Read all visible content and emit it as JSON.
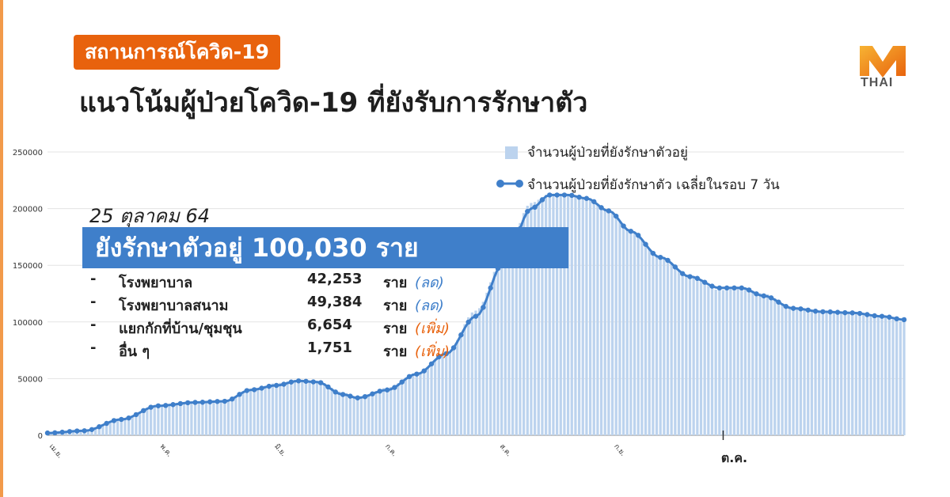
{
  "header": {
    "tag": "สถานการณ์โควิด-19",
    "headline": "แนวโน้มผู้ป่วยโควิด-19 ที่ยังรับการรักษาตัว"
  },
  "logo": {
    "text": "THAI"
  },
  "colors": {
    "accent": "#e8620d",
    "banner": "#3f7fca",
    "bar": "#bcd3ee",
    "line": "#3f7fca",
    "stripe": "#f29a4a",
    "decrease": "#3f7fca",
    "increase": "#e8620d"
  },
  "summary": {
    "date": "25 ตุลาคม 64",
    "headline": "ยังรักษาตัวอยู่ 100,030 ราย",
    "rows": [
      {
        "dash": "-",
        "name": "โรงพยาบาล",
        "value": "42,253",
        "unit": "ราย",
        "change": "(ลด)",
        "type": "decrease"
      },
      {
        "dash": "-",
        "name": "โรงพยาบาลสนาม",
        "value": "49,384",
        "unit": "ราย",
        "change": "(ลด)",
        "type": "decrease"
      },
      {
        "dash": "-",
        "name": "แยกกักที่บ้าน/ชุมชุน",
        "value": "6,654",
        "unit": "ราย",
        "change": "(เพิ่ม)",
        "type": "increase"
      },
      {
        "dash": "-",
        "name": "อื่น ๆ",
        "value": "1,751",
        "unit": "ราย",
        "change": "(เพิ่ม)",
        "type": "increase"
      }
    ]
  },
  "chart_data": {
    "type": "bar",
    "legend": [
      "จำนวนผู้ป่วยที่ยังรักษาตัวอยู่",
      "จำนวนผู้ป่วยที่ยังรักษาตัว เฉลี่ยในรอบ 7 วัน"
    ],
    "legend_position": "top-right",
    "ylim": [
      0,
      250000
    ],
    "yticks": [
      "0",
      "50000",
      "100000",
      "150000",
      "200000",
      "250000"
    ],
    "grid": true,
    "xtick_labels": [
      "เม.ย.",
      "พ.ค.",
      "มิ.ย.",
      "ก.ค.",
      "ส.ค.",
      "ก.ย.",
      "ต.ค."
    ],
    "xtick_day_index": [
      0,
      30,
      61,
      91,
      122,
      153,
      183
    ],
    "series": [
      {
        "name": "จำนวนผู้ป่วยที่ยังรักษาตัวอยู่",
        "style": "bars",
        "anchors": [
          [
            0,
            2000
          ],
          [
            10,
            4000
          ],
          [
            20,
            14000
          ],
          [
            30,
            26000
          ],
          [
            40,
            29000
          ],
          [
            48,
            30000
          ],
          [
            55,
            40000
          ],
          [
            62,
            46000
          ],
          [
            68,
            49000
          ],
          [
            73,
            48000
          ],
          [
            80,
            38000
          ],
          [
            84,
            33000
          ],
          [
            92,
            42000
          ],
          [
            100,
            55000
          ],
          [
            108,
            72000
          ],
          [
            116,
            110000
          ],
          [
            124,
            160000
          ],
          [
            131,
            205000
          ],
          [
            136,
            213000
          ],
          [
            141,
            212000
          ],
          [
            146,
            210000
          ],
          [
            152,
            198000
          ],
          [
            158,
            180000
          ],
          [
            166,
            158000
          ],
          [
            174,
            140000
          ],
          [
            182,
            128000
          ],
          [
            188,
            130000
          ],
          [
            194,
            125000
          ],
          [
            202,
            112000
          ],
          [
            210,
            108000
          ],
          [
            218,
            108000
          ],
          [
            226,
            105000
          ],
          [
            232,
            100000
          ]
        ]
      },
      {
        "name": "จำนวนผู้ป่วยที่ยังรักษาตัว เฉลี่ยในรอบ 7 วัน",
        "style": "line",
        "anchors": [
          [
            0,
            2000
          ],
          [
            10,
            4000
          ],
          [
            20,
            14000
          ],
          [
            30,
            26000
          ],
          [
            40,
            29000
          ],
          [
            48,
            30000
          ],
          [
            55,
            40000
          ],
          [
            62,
            44000
          ],
          [
            68,
            48000
          ],
          [
            73,
            47000
          ],
          [
            80,
            36000
          ],
          [
            84,
            33000
          ],
          [
            92,
            40000
          ],
          [
            100,
            54000
          ],
          [
            108,
            72000
          ],
          [
            116,
            105000
          ],
          [
            124,
            155000
          ],
          [
            131,
            200000
          ],
          [
            136,
            212000
          ],
          [
            141,
            212000
          ],
          [
            146,
            209000
          ],
          [
            152,
            198000
          ],
          [
            158,
            180000
          ],
          [
            166,
            157000
          ],
          [
            174,
            140000
          ],
          [
            182,
            130000
          ],
          [
            188,
            130000
          ],
          [
            194,
            123000
          ],
          [
            202,
            112000
          ],
          [
            210,
            109000
          ],
          [
            218,
            108000
          ],
          [
            226,
            105000
          ],
          [
            232,
            102000
          ]
        ]
      }
    ]
  }
}
